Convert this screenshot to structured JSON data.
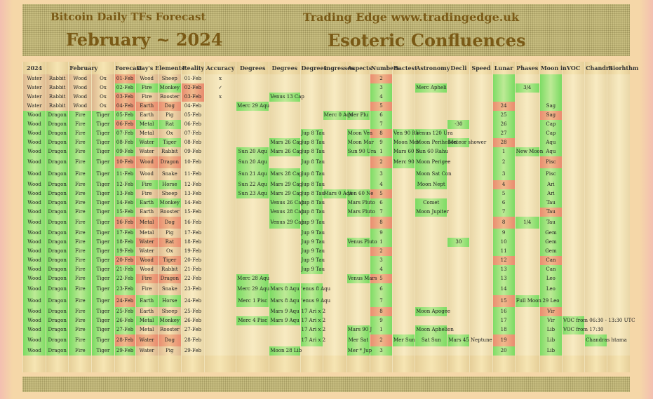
{
  "header": {
    "title_left": "Bitcoin Daily TFs Forecast",
    "month_title": "February ~ 2024",
    "title_right": "Trading Edge  www.tradingedge.uk",
    "subtitle_right": "Esoteric Confluences"
  },
  "columns": [
    "2024",
    "",
    "February",
    "",
    "Forecast",
    "Day's Elements",
    "",
    "Reality",
    "Accuracy",
    "Degrees",
    "Degrees",
    "Degrees",
    "Ingresses",
    "Aspects",
    "Numbers",
    "Bactest",
    "Astronomy",
    "Decli",
    "Speed",
    "Lunar",
    "Phases",
    "Moon in",
    "VOC",
    "Chandra",
    "Biorhthm"
  ],
  "rows": [
    {
      "c": [
        "Water",
        "Rabbit",
        "Wood",
        "Ox",
        "01-Feb",
        "Wood",
        "Sheep",
        "01-Feb",
        "x",
        "",
        "",
        "",
        "",
        "",
        "2",
        "",
        "",
        "",
        "",
        "",
        "",
        "",
        "",
        "",
        ""
      ]
    },
    {
      "c": [
        "Water",
        "Rabbit",
        "Wood",
        "Ox",
        "02-Feb",
        "Fire",
        "Monkey",
        "02-Feb",
        "✓",
        "",
        "",
        "",
        "",
        "",
        "3",
        "",
        "Merc Apheli",
        "",
        "",
        "",
        "3/4",
        "",
        "",
        "",
        ""
      ]
    },
    {
      "c": [
        "Water",
        "Rabbit",
        "Wood",
        "Ox",
        "03-Feb",
        "Fire",
        "Rooster",
        "03-Feb",
        "x",
        "",
        "Venus 13 Cap",
        "",
        "",
        "",
        "4",
        "",
        "",
        "",
        "",
        "",
        "",
        "",
        "",
        "",
        ""
      ]
    },
    {
      "c": [
        "Water",
        "Rabbit",
        "Wood",
        "Ox",
        "04-Feb",
        "Earth",
        "Dog",
        "04-Feb",
        "",
        "Merc 29 Aqu",
        "",
        "",
        "",
        "",
        "5",
        "",
        "",
        "",
        "",
        "24",
        "",
        "Sag",
        "",
        "",
        ""
      ]
    },
    {
      "c": [
        "Wood",
        "Dragon",
        "Fire",
        "Tiger",
        "05-Feb",
        "Earth",
        "Pig",
        "05-Feb",
        "",
        "",
        "",
        "",
        "Merc 0 Aqu",
        "Mer Plu",
        "6",
        "",
        "",
        "",
        "",
        "25",
        "",
        "Sag",
        "",
        "",
        ""
      ]
    },
    {
      "c": [
        "Wood",
        "Dragon",
        "Fire",
        "Tiger",
        "06-Feb",
        "Metal",
        "Rat",
        "06-Feb",
        "",
        "",
        "",
        "",
        "",
        "",
        "7",
        "",
        "",
        "-30",
        "",
        "26",
        "",
        "Cap",
        "",
        "",
        ""
      ]
    },
    {
      "c": [
        "Wood",
        "Dragon",
        "Fire",
        "Tiger",
        "07-Feb",
        "Metal",
        "Ox",
        "07-Feb",
        "",
        "",
        "",
        "Jup 8 Tau",
        "",
        "Moon Ven",
        "8",
        "Ven 90 Ra",
        "Venus 120 Ura",
        "",
        "",
        "27",
        "",
        "Cap",
        "",
        "",
        ""
      ]
    },
    {
      "c": [
        "Wood",
        "Dragon",
        "Fire",
        "Tiger",
        "08-Feb",
        "Water",
        "Tiger",
        "08-Feb",
        "",
        "",
        "Mars 26 Cap",
        "Jup 8 Tau",
        "",
        "Moon Mar",
        "9",
        "Moon Mer",
        "Moon Perihelion",
        "Meteor shower",
        "",
        "28",
        "",
        "Aqu",
        "",
        "",
        ""
      ]
    },
    {
      "c": [
        "Wood",
        "Dragon",
        "Fire",
        "Tiger",
        "09-Feb",
        "Water",
        "Rabbit",
        "09-Feb",
        "",
        "Sun 20 Aqu",
        "Mars 26 Cap",
        "Jup 8 Tau",
        "",
        "Sun 90 Ura",
        "1",
        "Mars 60 N",
        "Sun 60 Rahu",
        "",
        "",
        "1",
        "New Moon",
        "Aqu",
        "",
        "",
        ""
      ]
    },
    {
      "c": [
        "Wood",
        "Dragon",
        "Fire",
        "Tiger",
        "10-Feb",
        "Wood",
        "Dragon",
        "10-Feb",
        "",
        "Sun 20 Aqu",
        "",
        "Jup 8 Tau",
        "",
        "",
        "2",
        "Merc 90",
        "Moon  Perigee",
        "",
        "",
        "2",
        "",
        "Pisc",
        "",
        "",
        ""
      ]
    },
    {
      "c": [
        "Wood",
        "Dragon",
        "Fire",
        "Tiger",
        "11-Feb",
        "Wood",
        "Snake",
        "11-Feb",
        "",
        "Sun 21 Aqu",
        "Mars 28 Cap",
        "Jup 8 Tau",
        "",
        "",
        "3",
        "",
        "Moon Sat Con",
        "",
        "",
        "3",
        "",
        "Pisc",
        "",
        "",
        ""
      ]
    },
    {
      "c": [
        "Wood",
        "Dragon",
        "Fire",
        "Tiger",
        "12-Feb",
        "Fire",
        "Horse",
        "12-Feb",
        "",
        "Sun 22 Aqu",
        "Mars 29 Cap",
        "Jup 8 Tau",
        "",
        "",
        "4",
        "",
        "Moon Nept",
        "",
        "",
        "4",
        "",
        "Ari",
        "",
        "",
        ""
      ]
    },
    {
      "c": [
        "Wood",
        "Dragon",
        "Fire",
        "Tiger",
        "13-Feb",
        "Fire",
        "Sheep",
        "13-Feb",
        "",
        "Sun 23 Aqu",
        "Mars 29 Cap",
        "Jup 8 Tau",
        "Mars 0 Aqu",
        "Ven 60 Ne",
        "5",
        "",
        "",
        "",
        "",
        "5",
        "",
        "Ari",
        "",
        "",
        ""
      ]
    },
    {
      "c": [
        "Wood",
        "Dragon",
        "Fire",
        "Tiger",
        "14-Feb",
        "Earth",
        "Monkey",
        "14-Feb",
        "",
        "",
        "Venus 26 Cap",
        "Jup 8 Tau",
        "",
        "Mars Pluto",
        "6",
        "",
        "Comet",
        "",
        "",
        "6",
        "",
        "Tau",
        "",
        "",
        ""
      ]
    },
    {
      "c": [
        "Wood",
        "Dragon",
        "Fire",
        "Tiger",
        "15-Feb",
        "Earth",
        "Rooster",
        "15-Feb",
        "",
        "",
        "Venus 28 Cap",
        "Jup 8 Tau",
        "",
        "Mars Pluto",
        "7",
        "",
        "Moon Jupiter",
        "",
        "",
        "7",
        "",
        "Tau",
        "",
        "",
        ""
      ]
    },
    {
      "c": [
        "Wood",
        "Dragon",
        "Fire",
        "Tiger",
        "16-Feb",
        "Metal",
        "Dog",
        "16-Feb",
        "",
        "",
        "Venus 29 Cap",
        "Jup 9 Tau",
        "",
        "",
        "8",
        "",
        "",
        "",
        "",
        "8",
        "1/4",
        "Tau",
        "",
        "",
        ""
      ]
    },
    {
      "c": [
        "Wood",
        "Dragon",
        "Fire",
        "Tiger",
        "17-Feb",
        "Metal",
        "Pig",
        "17-Feb",
        "",
        "",
        "",
        "Jup 9 Tau",
        "",
        "",
        "9",
        "",
        "",
        "",
        "",
        "9",
        "",
        "Gem",
        "",
        "",
        ""
      ]
    },
    {
      "c": [
        "Wood",
        "Dragon",
        "Fire",
        "Tiger",
        "18-Feb",
        "Water",
        "Rat",
        "18-Feb",
        "",
        "",
        "",
        "Jup 9 Tau",
        "",
        "Venus Pluto",
        "1",
        "",
        "",
        "30",
        "",
        "10",
        "",
        "Gem",
        "",
        "",
        ""
      ]
    },
    {
      "c": [
        "Wood",
        "Dragon",
        "Fire",
        "Tiger",
        "19-Feb",
        "Water",
        "Ox",
        "19-Feb",
        "",
        "",
        "",
        "Jup 9 Tau",
        "",
        "",
        "2",
        "",
        "",
        "",
        "",
        "11",
        "",
        "Gem",
        "",
        "",
        ""
      ]
    },
    {
      "c": [
        "Wood",
        "Dragon",
        "Fire",
        "Tiger",
        "20-Feb",
        "Wood",
        "Tiger",
        "20-Feb",
        "",
        "",
        "",
        "Jup 9 Tau",
        "",
        "",
        "3",
        "",
        "",
        "",
        "",
        "12",
        "",
        "Can",
        "",
        "",
        ""
      ]
    },
    {
      "c": [
        "Wood",
        "Dragon",
        "Fire",
        "Tiger",
        "21-Feb",
        "Wood",
        "Rabbit",
        "21-Feb",
        "",
        "",
        "",
        "Jup 9 Tau",
        "",
        "",
        "4",
        "",
        "",
        "",
        "",
        "13",
        "",
        "Can",
        "",
        "",
        ""
      ]
    },
    {
      "c": [
        "Wood",
        "Dragon",
        "Fire",
        "Tiger",
        "22-Feb",
        "Fire",
        "Dragon",
        "22-Feb",
        "",
        "Merc 28 Aqu",
        "",
        "",
        "",
        "Venus Mars",
        "5",
        "",
        "",
        "",
        "",
        "13",
        "",
        "Leo",
        "",
        "",
        ""
      ]
    },
    {
      "c": [
        "Wood",
        "Dragon",
        "Fire",
        "Tiger",
        "23-Feb",
        "Fire",
        "Snake",
        "23-Feb",
        "",
        "Merc 29 Aqu",
        "Mars 8 Aqu",
        "'enus 8 Aqu",
        "",
        "",
        "6",
        "",
        "",
        "",
        "",
        "14",
        "",
        "Leo",
        "",
        "",
        ""
      ]
    },
    {
      "c": [
        "Wood",
        "Dragon",
        "Fire",
        "Tiger",
        "24-Feb",
        "Earth",
        "Horse",
        "24-Feb",
        "",
        "Merc 1 Pisc",
        "Mars 8 Aqu",
        "'enus 9 Aqu",
        "",
        "",
        "7",
        "",
        "",
        "",
        "",
        "15",
        "Full Moon",
        "29 Leo",
        "",
        "",
        ""
      ]
    },
    {
      "c": [
        "Wood",
        "Dragon",
        "Fire",
        "Tiger",
        "25-Feb",
        "Earth",
        "Sheep",
        "25-Feb",
        "",
        "",
        "Mars 9 Aqu",
        "17 Ari x 2",
        "",
        "",
        "8",
        "",
        "Moon Apogee",
        "",
        "",
        "16",
        "",
        "Vir",
        "",
        "",
        ""
      ]
    },
    {
      "c": [
        "Wood",
        "Dragon",
        "Fire",
        "Tiger",
        "26-Feb",
        "Metal",
        "Monkey",
        "26-Feb",
        "",
        "Merc 4 Pisc",
        "Mars 9 Aqu",
        "17 Ari x 2",
        "",
        "",
        "9",
        "",
        "",
        "",
        "",
        "17",
        "",
        "Vir",
        "VOC from 06:30 - 13:30 UTC",
        "",
        ""
      ]
    },
    {
      "c": [
        "Wood",
        "Dragon",
        "Fire",
        "Tiger",
        "27-Feb",
        "Metal",
        "Rooster",
        "27-Feb",
        "",
        "",
        "",
        "17 Ari x 2",
        "",
        "Mars 90 J",
        "1",
        "",
        "Moon Aphelion",
        "",
        "",
        "18",
        "",
        "Lib",
        "VOC from 17:30",
        "",
        ""
      ]
    },
    {
      "c": [
        "Wood",
        "Dragon",
        "Fire",
        "Tiger",
        "28-Feb",
        "Water",
        "Dog",
        "28-Feb",
        "",
        "",
        "",
        "17 Ari x 2",
        "",
        "Mer Sat",
        "2",
        "Mer Sun",
        "Sat Sun",
        "Mars 45 Neptune",
        "",
        "19",
        "",
        "Lib",
        "",
        "Chandras htama",
        ""
      ]
    },
    {
      "c": [
        "Wood",
        "Dragon",
        "Fire",
        "Tiger",
        "29-Feb",
        "Water",
        "Pig",
        "29-Feb",
        "",
        "",
        "Moon 28 Lib",
        "",
        "",
        "Mer * Jup",
        "3",
        "",
        "",
        "",
        "",
        "20",
        "",
        "Lib",
        "",
        "",
        ""
      ]
    }
  ]
}
